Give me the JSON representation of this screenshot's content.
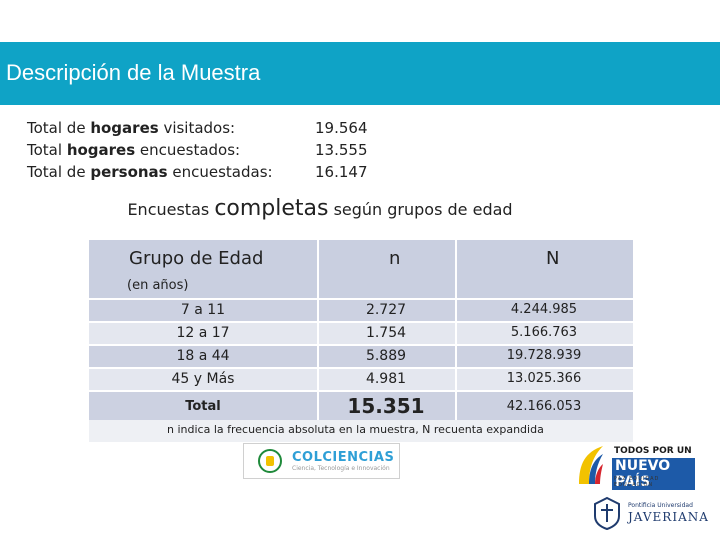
{
  "header": {
    "title": "Descripción de la Muestra"
  },
  "totals": [
    {
      "prefix": "Total de ",
      "bold": "hogares",
      "suffix": " visitados:",
      "value": "19.564"
    },
    {
      "prefix": "Total ",
      "bold": "hogares",
      "suffix": " encuestados:",
      "value": "13.555"
    },
    {
      "prefix": "Total de ",
      "bold": "personas",
      "suffix": " encuestadas:",
      "value": "16.147"
    }
  ],
  "subtitle": {
    "pre": "Encuestas ",
    "emph": "completas",
    "post": " según grupos de edad"
  },
  "table": {
    "headers": {
      "group": "Grupo de Edad",
      "group_sub": "(en años)",
      "n": "n",
      "N": "N"
    },
    "rows": [
      {
        "group": "7 a 11",
        "n": "2.727",
        "N": "4.244.985"
      },
      {
        "group": "12 a 17",
        "n": "1.754",
        "N": "5.166.763"
      },
      {
        "group": "18 a 44",
        "n": "5.889",
        "N": "19.728.939"
      },
      {
        "group": "45 y Más",
        "n": "4.981",
        "N": "13.025.366"
      }
    ],
    "total": {
      "group": "Total",
      "n": "15.351",
      "N": "42.166.053"
    }
  },
  "footnote": "n indica la frecuencia absoluta en la muestra, N recuenta expandida",
  "logos": {
    "colciencias": {
      "name": "COLCIENCIAS",
      "sub": "Ciencia, Tecnología e Innovación"
    },
    "nuevopais": {
      "line1": "TODOS POR UN",
      "line2": "NUEVO PAÍS",
      "line3": "PAZ EQUIDAD EDUCACIÓN"
    },
    "javeriana": {
      "small": "Pontificia Universidad",
      "big": "JAVERIANA"
    }
  },
  "colors": {
    "title_bar": "#0fa3c6",
    "header_row": "#c9cfe0",
    "row_light": "#e4e7ef",
    "row_dark": "#ccd1e1"
  }
}
